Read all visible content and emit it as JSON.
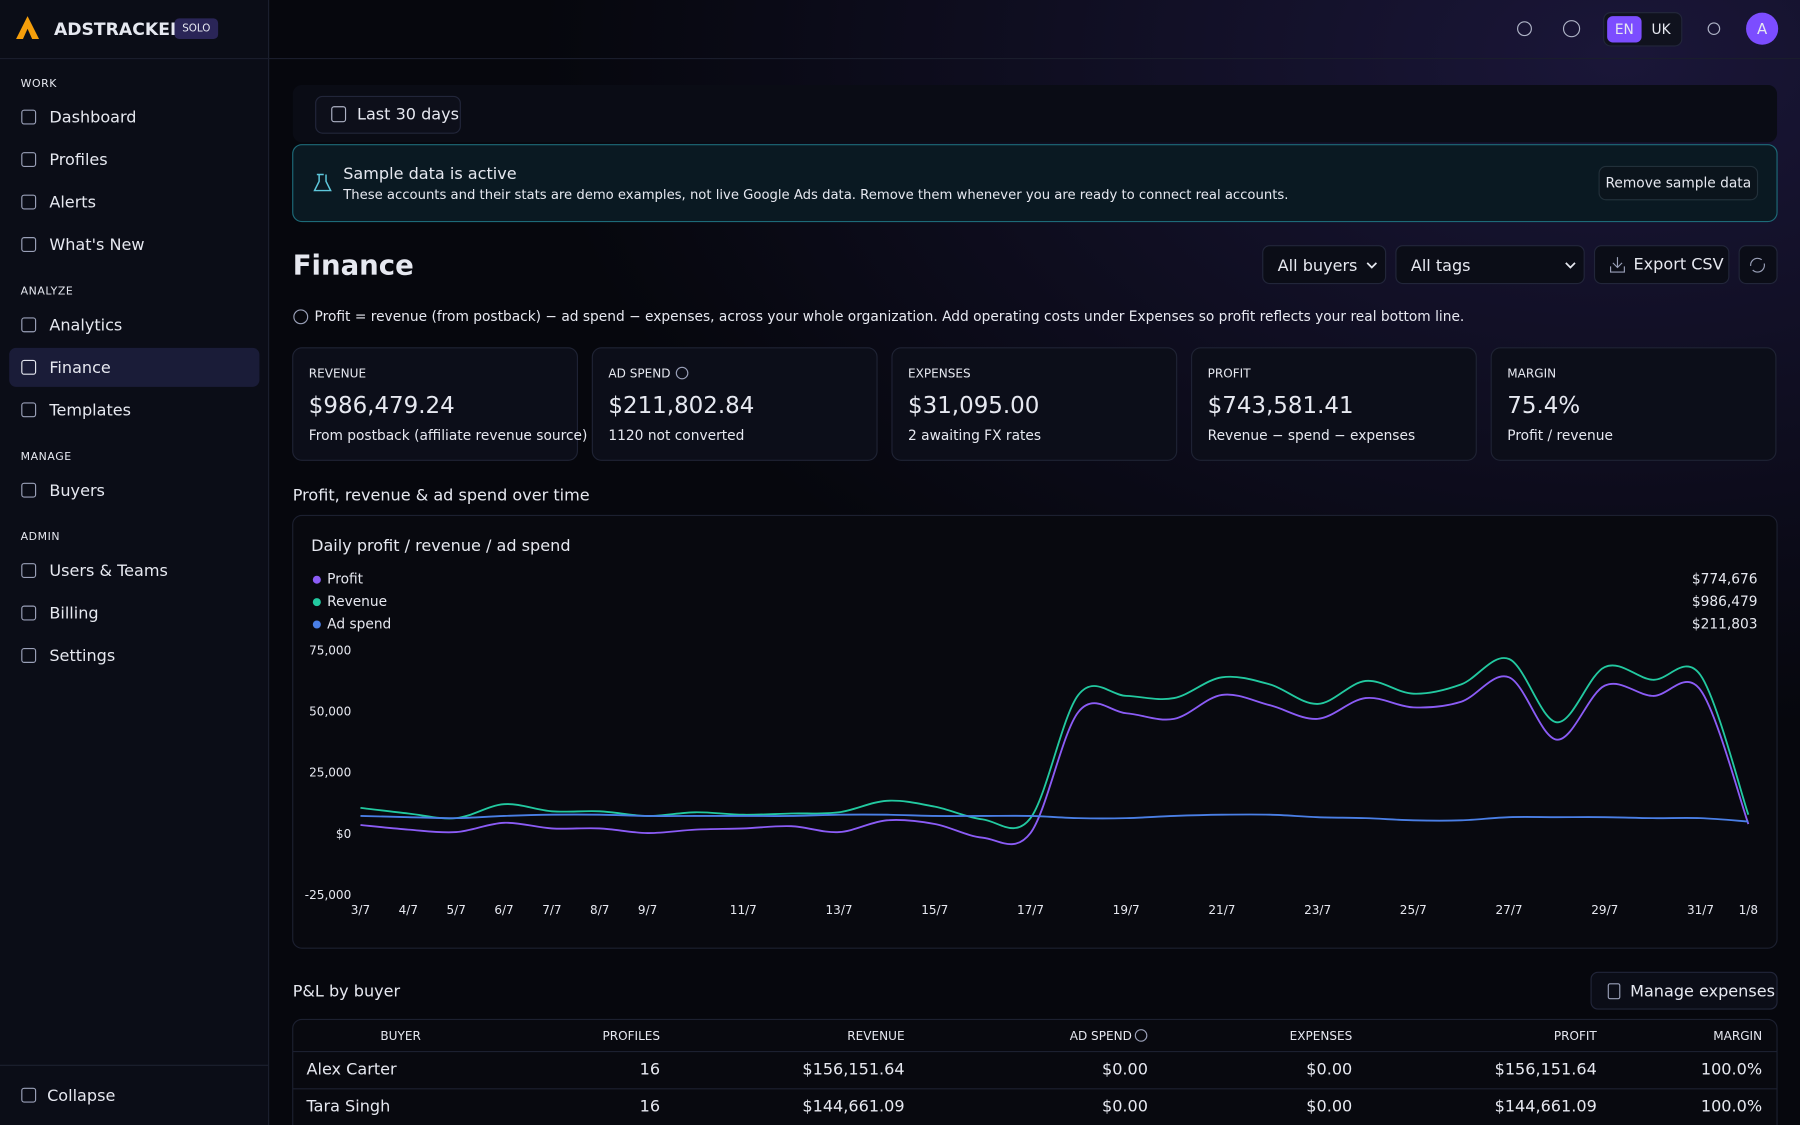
{
  "brand": {
    "name": "ADSTRACKER",
    "plan": "SOLO"
  },
  "header": {
    "languages": [
      "EN",
      "UK"
    ],
    "active_language": "EN",
    "avatar": "A"
  },
  "sidebar": {
    "sections": [
      {
        "title": "WORK",
        "items": [
          "Dashboard",
          "Profiles",
          "Alerts",
          "What's New"
        ]
      },
      {
        "title": "ANALYZE",
        "items": [
          "Analytics",
          "Finance",
          "Templates"
        ]
      },
      {
        "title": "MANAGE",
        "items": [
          "Buyers"
        ]
      },
      {
        "title": "ADMIN",
        "items": [
          "Users & Teams",
          "Billing",
          "Settings"
        ]
      }
    ],
    "active": "Finance",
    "collapse": "Collapse"
  },
  "date_range": "Last 30 days",
  "banner": {
    "title": "Sample data is active",
    "text": "These accounts and their stats are demo examples, not live Google Ads data. Remove them whenever you are ready to connect real accounts.",
    "button": "Remove sample data"
  },
  "page": {
    "title": "Finance",
    "filters": [
      "All buyers",
      "All tags"
    ],
    "export": "Export CSV",
    "note": "Profit = revenue (from postback) − ad spend − expenses, across your whole organization. Add operating costs under Expenses so profit reflects your real bottom line."
  },
  "cards": [
    {
      "label": "REVENUE",
      "value": "$986,479.24",
      "sub": "From postback (affiliate revenue source)"
    },
    {
      "label": "AD SPEND",
      "value": "$211,802.84",
      "sub": "1120 not converted",
      "info": true
    },
    {
      "label": "EXPENSES",
      "value": "$31,095.00",
      "sub": "2 awaiting FX rates"
    },
    {
      "label": "PROFIT",
      "value": "$743,581.41",
      "sub": "Revenue − spend − expenses",
      "color": "#2fd39b"
    },
    {
      "label": "MARGIN",
      "value": "75.4%",
      "sub": "Profit / revenue"
    }
  ],
  "chart_section": "Profit, revenue & ad spend over time",
  "chart_data": {
    "type": "line",
    "title": "Daily profit / revenue / ad spend",
    "categories": [
      "3/7",
      "4/7",
      "5/7",
      "6/7",
      "7/7",
      "8/7",
      "9/7",
      null,
      "11/7",
      null,
      "13/7",
      null,
      "15/7",
      null,
      "17/7",
      null,
      "19/7",
      null,
      "21/7",
      null,
      "23/7",
      null,
      "25/7",
      null,
      "27/7",
      null,
      "29/7",
      null,
      "31/7",
      "1/8"
    ],
    "ylim": [
      -25000,
      75000
    ],
    "yticks": [
      {
        "value": -25000,
        "label": "-25,000"
      },
      {
        "value": 0,
        "label": "$0"
      },
      {
        "value": 25000,
        "label": "25,000"
      },
      {
        "value": 50000,
        "label": "50,000"
      },
      {
        "value": 75000,
        "label": "75,000"
      }
    ],
    "grid": false,
    "series": [
      {
        "name": "Profit",
        "color": "#8b5cf6",
        "total": "$774,676",
        "values": [
          3800,
          1900,
          900,
          4700,
          2400,
          2400,
          500,
          1900,
          2400,
          3300,
          900,
          5700,
          4200,
          -1400,
          500,
          50000,
          49500,
          47200,
          57000,
          52800,
          47200,
          55700,
          51900,
          54200,
          64200,
          38700,
          60800,
          56600,
          59000,
          4200
        ]
      },
      {
        "name": "Revenue",
        "color": "#22c9a0",
        "total": "$986,479",
        "values": [
          10800,
          8500,
          6600,
          12300,
          9400,
          9400,
          7500,
          9000,
          8000,
          8500,
          9000,
          13700,
          11300,
          6100,
          6600,
          57000,
          56600,
          55700,
          64200,
          61300,
          53300,
          62700,
          57500,
          61300,
          71700,
          45800,
          68400,
          63200,
          65100,
          8000
        ]
      },
      {
        "name": "Ad spend",
        "color": "#4a7fe6",
        "total": "$211,803",
        "values": [
          7500,
          7000,
          6600,
          7500,
          8000,
          8000,
          7500,
          7500,
          7500,
          7500,
          8000,
          8000,
          7500,
          7500,
          7500,
          6600,
          6600,
          7500,
          8000,
          8000,
          7000,
          6600,
          5700,
          5700,
          7000,
          7000,
          7000,
          6600,
          6600,
          5200
        ]
      }
    ]
  },
  "pl": {
    "title": "P&L by buyer",
    "button": "Manage expenses",
    "columns": [
      "BUYER",
      "PROFILES",
      "REVENUE",
      "AD SPEND",
      "EXPENSES",
      "PROFIT",
      "MARGIN"
    ],
    "rows": [
      [
        "Alex Carter",
        16,
        "$156,151.64",
        "$0.00",
        "$0.00",
        "$156,151.64",
        "100.0%"
      ],
      [
        "Tara Singh",
        16,
        "$144,661.09",
        "$0.00",
        "$0.00",
        "$144,661.09",
        "100.0%"
      ]
    ]
  }
}
